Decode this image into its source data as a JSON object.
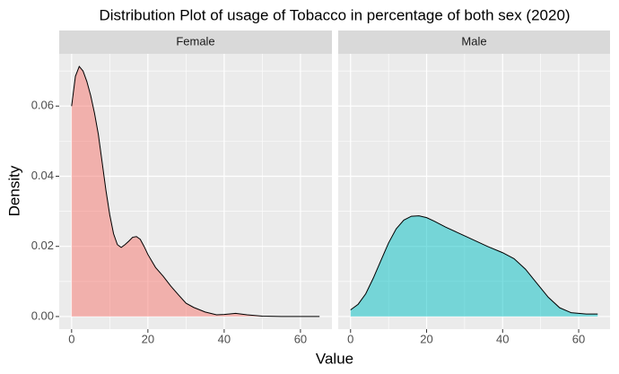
{
  "chart_data": {
    "type": "density",
    "title": "Distribution Plot of usage of Tobacco in percentage of both sex (2020)",
    "xlabel": "Value",
    "ylabel": "Density",
    "xlim": [
      -3.25,
      68.25
    ],
    "xticks": [
      0,
      20,
      40,
      60
    ],
    "xminor": [
      10,
      30,
      50
    ],
    "ylim": [
      -0.0036,
      0.0749
    ],
    "yticks": [
      {
        "value": 0,
        "label": "0.00"
      },
      {
        "value": 0.02,
        "label": "0.02"
      },
      {
        "value": 0.04,
        "label": "0.04"
      },
      {
        "value": 0.06,
        "label": "0.06"
      }
    ],
    "yminor": [
      0.01,
      0.03,
      0.05,
      0.07
    ],
    "grid": true,
    "series": [
      {
        "name": "Female",
        "color": "#F8766D",
        "x": [
          0,
          1,
          2,
          3,
          4,
          5,
          6,
          7,
          8,
          9,
          10,
          11,
          12,
          13,
          14,
          15,
          16,
          17,
          18,
          19,
          20,
          22,
          24,
          26,
          28,
          30,
          32,
          35,
          38,
          40,
          43,
          46,
          50,
          55,
          60,
          65
        ],
        "values": [
          0.06,
          0.0685,
          0.0713,
          0.07,
          0.067,
          0.063,
          0.058,
          0.052,
          0.044,
          0.036,
          0.029,
          0.0236,
          0.0205,
          0.0197,
          0.0205,
          0.0215,
          0.0226,
          0.0228,
          0.022,
          0.02,
          0.0177,
          0.014,
          0.0115,
          0.0087,
          0.0062,
          0.0038,
          0.0026,
          0.0013,
          0.0005,
          0.0006,
          0.0009,
          0.0005,
          0.0001,
          2e-05,
          1e-05,
          1e-05
        ]
      },
      {
        "name": "Male",
        "color": "#00BFC4",
        "x": [
          0,
          2,
          4,
          6,
          8,
          10,
          12,
          14,
          16,
          18,
          20,
          22,
          25,
          28,
          30,
          33,
          36,
          40,
          43,
          46,
          49,
          52,
          55,
          58,
          62,
          65
        ],
        "values": [
          0.0019,
          0.0035,
          0.0065,
          0.011,
          0.016,
          0.021,
          0.025,
          0.0275,
          0.0286,
          0.0287,
          0.0282,
          0.0272,
          0.0255,
          0.024,
          0.023,
          0.0215,
          0.02,
          0.0182,
          0.0165,
          0.0135,
          0.0095,
          0.0055,
          0.0025,
          0.0011,
          0.0007,
          0.0007
        ]
      }
    ]
  }
}
